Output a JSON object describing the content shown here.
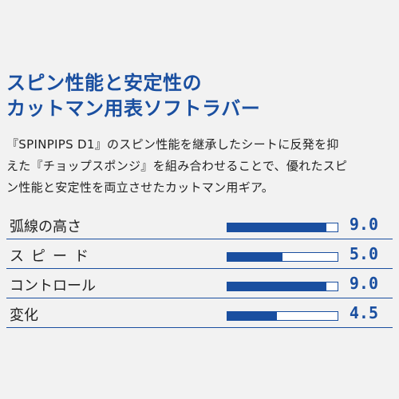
{
  "headline": {
    "line1": "スピン性能と安定性の",
    "line2": "カットマン用表ソフトラバー"
  },
  "description": {
    "line1": "『SPINPIPS D1』のスピン性能を継承したシートに反発を抑",
    "line2": "えた『チョップスポンジ』を組み合わせることで、優れたスピ",
    "line3": "ン性能と安定性を両立させたカットマン用ギア。"
  },
  "colors": {
    "accent": "#1a4fa0",
    "text": "#222222",
    "background": "#f2f2f2"
  },
  "stats": {
    "max": 10,
    "items": [
      {
        "label": "弧線の高さ",
        "value": "9.0",
        "level": 9.0
      },
      {
        "label": "スピード",
        "value": "5.0",
        "level": 5.0
      },
      {
        "label": "コントロール",
        "value": "9.0",
        "level": 9.0
      },
      {
        "label": "変化",
        "value": "4.5",
        "level": 4.5
      }
    ]
  }
}
